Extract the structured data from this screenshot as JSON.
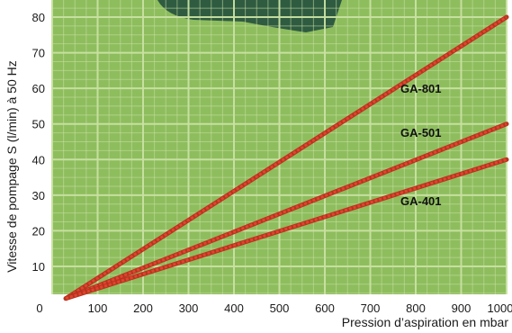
{
  "chart_data": {
    "type": "line",
    "title": "",
    "xlabel": "Pression d’aspiration en mbar",
    "ylabel": "Vitesse de pompage S (l/min) à 50 Hz",
    "xlim": [
      0,
      1000
    ],
    "ylim": [
      0,
      80
    ],
    "x_ticks": [
      0,
      100,
      200,
      300,
      400,
      500,
      600,
      700,
      800,
      900,
      1000
    ],
    "y_ticks": [
      10,
      20,
      30,
      40,
      50,
      60,
      70,
      80
    ],
    "grid": true,
    "legend": "inline labels",
    "series": [
      {
        "name": "GA-801",
        "color": "#e0452e",
        "x": [
          30,
          1000
        ],
        "y": [
          1,
          80
        ]
      },
      {
        "name": "GA-501",
        "color": "#e0452e",
        "x": [
          30,
          1000
        ],
        "y": [
          1,
          50
        ]
      },
      {
        "name": "GA-401",
        "color": "#e0452e",
        "x": [
          30,
          1000
        ],
        "y": [
          1,
          40
        ]
      }
    ],
    "colors": {
      "background": "#8ebd5e",
      "grid": "#c9e2a3",
      "curve": "#e0452e"
    }
  }
}
